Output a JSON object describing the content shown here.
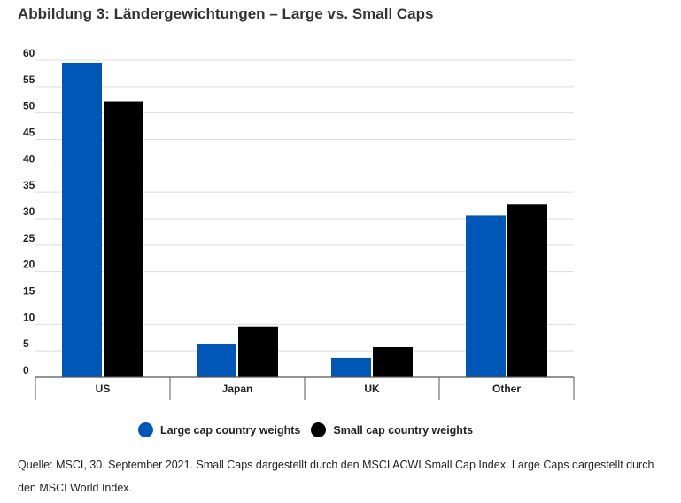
{
  "title": "Abbildung 3: Ländergewichtungen – Large vs. Small Caps",
  "chart_data": {
    "type": "bar",
    "categories": [
      "US",
      "Japan",
      "UK",
      "Other"
    ],
    "series": [
      {
        "name": "Large cap country weights",
        "color": "#0057b8",
        "values": [
          59.5,
          6.2,
          3.7,
          30.6
        ]
      },
      {
        "name": "Small cap country weights",
        "color": "#000000",
        "values": [
          52.2,
          9.6,
          5.7,
          32.8
        ]
      }
    ],
    "yticks": [
      "0",
      "5",
      "10",
      "15",
      "20",
      "25",
      "30",
      "35",
      "40",
      "45",
      "50",
      "55",
      "60"
    ],
    "ylim": [
      0,
      60
    ],
    "grid": true,
    "legend_position": "bottom-left"
  },
  "source": "Quelle: MSCI, 30. September 2021. Small Caps dargestellt durch den MSCI ACWI Small Cap Index. Large Caps dargestellt durch den MSCI World Index."
}
